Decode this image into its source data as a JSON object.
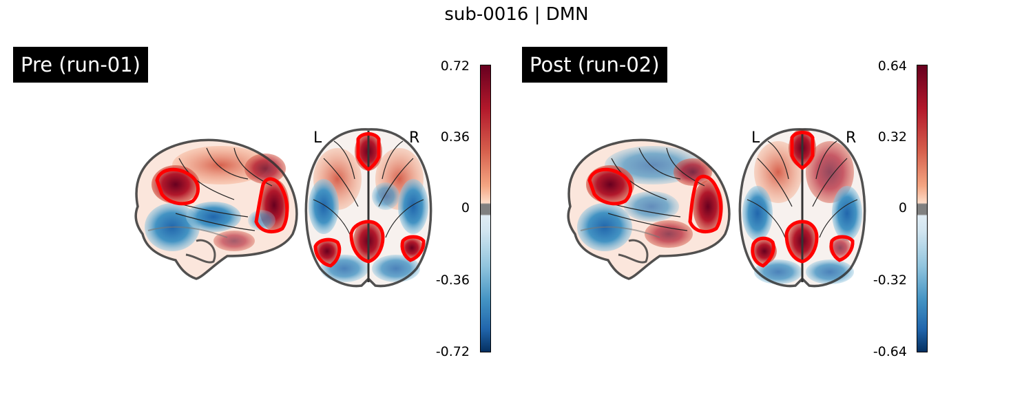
{
  "title": "sub-0016 | DMN",
  "panels": [
    {
      "label": "Pre (run-01)",
      "left_marker": "L",
      "right_marker": "R",
      "colorbar_ticks": [
        "0.72",
        "0.36",
        "0",
        "-0.36",
        "-0.72"
      ]
    },
    {
      "label": "Post (run-02)",
      "left_marker": "L",
      "right_marker": "R",
      "colorbar_ticks": [
        "0.64",
        "0.32",
        "0",
        "-0.32",
        "-0.64"
      ]
    }
  ],
  "colors": {
    "positive_max": "#67001f",
    "positive_mid": "#d6604d",
    "neutral": "#f7f7f7",
    "threshold_band": "#808080",
    "negative_mid": "#4393c3",
    "negative_max": "#053061",
    "roi_outline": "#ff0000"
  },
  "icons": {
    "sagittal_view": "brain-sagittal-glass-brain",
    "axial_view": "brain-axial-glass-brain"
  }
}
